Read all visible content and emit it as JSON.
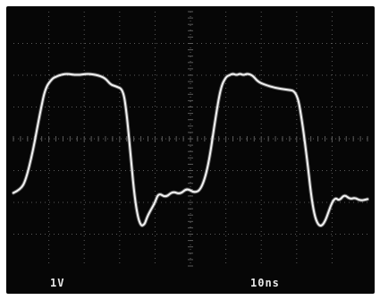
{
  "colors": {
    "screen": "#060606",
    "grid": "#5a5a5a",
    "trace": "#f2f2f2",
    "text": "#e8e8e8"
  },
  "readouts": {
    "volts_per_div": "1V",
    "time_per_div": "10ns"
  },
  "chart_data": {
    "type": "line",
    "title": "",
    "xlabel": "",
    "ylabel": "",
    "x_divisions": 10,
    "y_divisions": 8,
    "grid": true,
    "xlim": [
      0,
      10
    ],
    "ylim": [
      0,
      8
    ],
    "series": [
      {
        "x": [
          0.0,
          0.2,
          0.35,
          0.55,
          0.75,
          0.9,
          1.1,
          1.2,
          1.3,
          1.5,
          1.8,
          2.1,
          2.4,
          2.6,
          2.75,
          2.9,
          3.1,
          3.2,
          3.3,
          3.4,
          3.5,
          3.6,
          3.7,
          3.75,
          3.8,
          3.9,
          4.0,
          4.1,
          4.3,
          4.5,
          4.7,
          4.9,
          5.1,
          5.3,
          5.5,
          5.7,
          5.85,
          6.0,
          6.1,
          6.2,
          6.3,
          6.4,
          6.5,
          6.6,
          6.75,
          6.9,
          7.1,
          7.4,
          7.7,
          8.0,
          8.15,
          8.3,
          8.4,
          8.5,
          8.6,
          8.7,
          8.8,
          8.9,
          9.0,
          9.1,
          9.2,
          9.35,
          9.5,
          9.65,
          9.8,
          10.0
        ],
        "y": [
          2.3,
          2.4,
          2.7,
          3.6,
          4.8,
          5.6,
          5.9,
          5.95,
          6.0,
          6.05,
          6.0,
          6.05,
          6.0,
          5.9,
          5.7,
          5.65,
          5.55,
          4.8,
          3.6,
          2.4,
          1.6,
          1.25,
          1.3,
          1.45,
          1.6,
          1.8,
          2.0,
          2.3,
          2.15,
          2.35,
          2.25,
          2.45,
          2.3,
          2.4,
          3.1,
          4.6,
          5.6,
          5.95,
          6.0,
          6.05,
          6.0,
          6.05,
          6.0,
          6.05,
          6.0,
          5.8,
          5.7,
          5.6,
          5.55,
          5.5,
          4.6,
          3.3,
          2.3,
          1.6,
          1.3,
          1.25,
          1.4,
          1.7,
          2.0,
          2.15,
          2.05,
          2.25,
          2.1,
          2.15,
          2.05,
          2.1
        ]
      }
    ]
  }
}
